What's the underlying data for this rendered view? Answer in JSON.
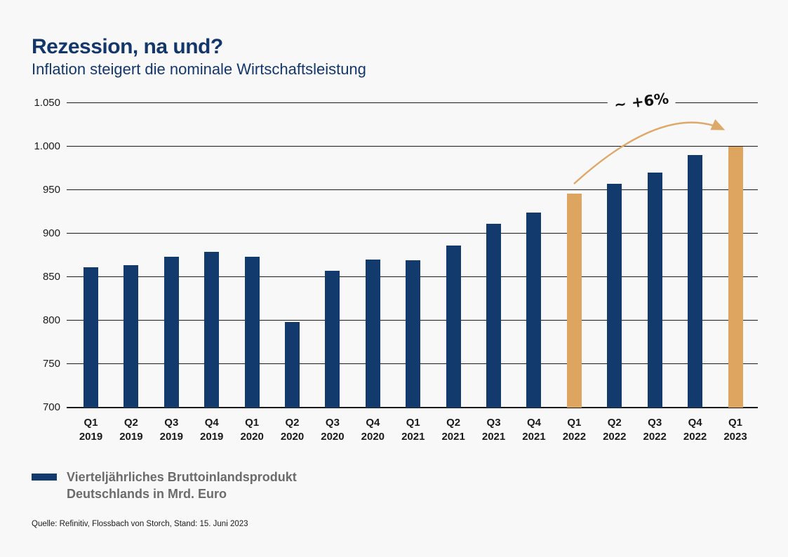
{
  "header": {
    "title": "Rezession, na und?",
    "subtitle": "Inflation steigert die nominale Wirtschaftsleistung"
  },
  "annotation": {
    "label": "~ +6%"
  },
  "legend": {
    "label_line1": "Vierteljährliches Bruttoinlandsprodukt",
    "label_line2": "Deutschlands in Mrd. Euro"
  },
  "source": {
    "text": "Quelle: Refinitiv, Flossbach von Storch, Stand: 15. Juni 2023"
  },
  "colors": {
    "bar": "#123A6D",
    "highlight": "#DDA55F",
    "arrow": "#DEA868",
    "title": "#14376B",
    "background": "#F8F8F8",
    "legend_text": "#6b6b6b"
  },
  "chart_data": {
    "type": "bar",
    "title": "Rezession, na und?",
    "subtitle": "Inflation steigert die nominale Wirtschaftsleistung",
    "ylabel": "Vierteljährliches Bruttoinlandsprodukt Deutschlands in Mrd. Euro",
    "xlabel": "",
    "categories": [
      {
        "quarter": "Q1",
        "year": "2019"
      },
      {
        "quarter": "Q2",
        "year": "2019"
      },
      {
        "quarter": "Q3",
        "year": "2019"
      },
      {
        "quarter": "Q4",
        "year": "2019"
      },
      {
        "quarter": "Q1",
        "year": "2020"
      },
      {
        "quarter": "Q2",
        "year": "2020"
      },
      {
        "quarter": "Q3",
        "year": "2020"
      },
      {
        "quarter": "Q4",
        "year": "2020"
      },
      {
        "quarter": "Q1",
        "year": "2021"
      },
      {
        "quarter": "Q2",
        "year": "2021"
      },
      {
        "quarter": "Q3",
        "year": "2021"
      },
      {
        "quarter": "Q4",
        "year": "2021"
      },
      {
        "quarter": "Q1",
        "year": "2022"
      },
      {
        "quarter": "Q2",
        "year": "2022"
      },
      {
        "quarter": "Q3",
        "year": "2022"
      },
      {
        "quarter": "Q4",
        "year": "2022"
      },
      {
        "quarter": "Q1",
        "year": "2023"
      }
    ],
    "values": [
      861,
      864,
      873,
      879,
      873,
      798,
      857,
      870,
      869,
      886,
      911,
      924,
      946,
      957,
      970,
      990,
      1000
    ],
    "highlighted_indices": [
      12,
      16
    ],
    "annotation": {
      "label": "~ +6%",
      "from_category": "Q1 2022",
      "to_category": "Q1 2023"
    },
    "ylim": [
      700,
      1050
    ],
    "yticks": [
      700,
      750,
      800,
      850,
      900,
      950,
      1000,
      1050
    ],
    "ytick_labels": [
      "700",
      "750",
      "800",
      "850",
      "900",
      "950",
      "1.000",
      "1.050"
    ],
    "grid": true,
    "legend_position": "bottom-left"
  }
}
